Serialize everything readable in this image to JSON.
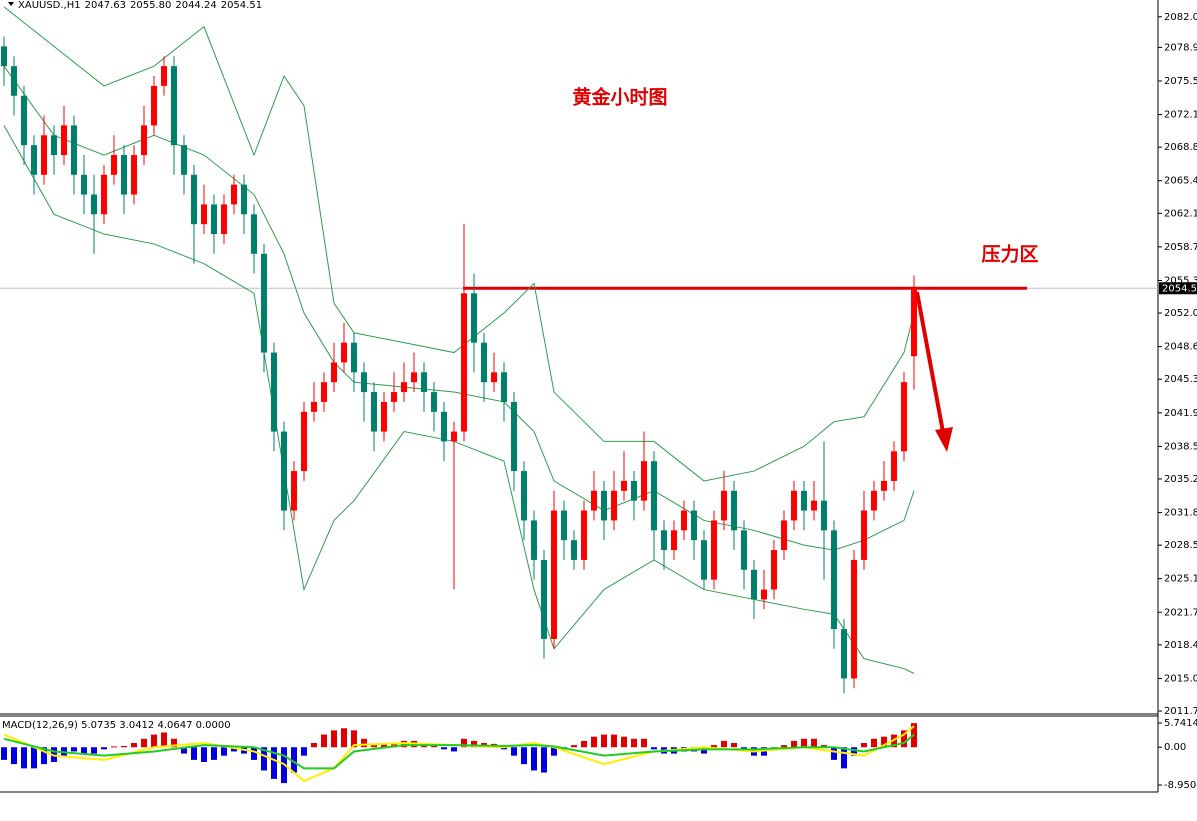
{
  "chart_data": {
    "type": "candlestick",
    "symbol": "XAUUSD.,H1",
    "last_bar_labels": [
      "2047.63",
      "2055.80",
      "2044.24",
      "2054.51"
    ],
    "annotation_title": "黄金小时图",
    "annotation_zone": "压力区",
    "resistance": 2054.51,
    "up_color": "#ff0000",
    "down_color": "#00806a",
    "band_color": "#2e9e4a",
    "open": [
      2079,
      2077,
      2074,
      2069,
      2066,
      2070,
      2068,
      2071,
      2066,
      2064,
      2062,
      2066,
      2068,
      2064,
      2068,
      2071,
      2075,
      2077,
      2069,
      2066,
      2061,
      2063,
      2060,
      2063,
      2065,
      2062,
      2058,
      2048,
      2040,
      2032,
      2036,
      2042,
      2043,
      2045,
      2047,
      2049,
      2046,
      2044,
      2040,
      2043,
      2044,
      2045,
      2046,
      2044,
      2042,
      2039,
      2040,
      2054,
      2049,
      2045,
      2046,
      2043,
      2036,
      2031,
      2027,
      2019,
      2032,
      2029,
      2027,
      2032,
      2034,
      2031,
      2034,
      2035,
      2033,
      2037,
      2030,
      2028,
      2030,
      2032,
      2029,
      2025,
      2031,
      2034,
      2030,
      2026,
      2023,
      2024,
      2028,
      2031,
      2034,
      2032,
      2033,
      2030,
      2020,
      2015,
      2027,
      2032,
      2034,
      2035,
      2038,
      2047.63
    ],
    "high": [
      2080,
      2078,
      2075,
      2070,
      2072,
      2071,
      2073,
      2072,
      2068,
      2066,
      2067,
      2070,
      2069,
      2069,
      2073,
      2076,
      2078,
      2078,
      2070,
      2067,
      2065,
      2064,
      2064,
      2066,
      2066,
      2063,
      2059,
      2049,
      2041,
      2037,
      2043,
      2045,
      2046,
      2049,
      2051,
      2050,
      2047,
      2045,
      2044,
      2046,
      2047,
      2048,
      2047,
      2045,
      2043,
      2041,
      2061,
      2056,
      2050,
      2048,
      2047,
      2044,
      2037,
      2032,
      2028,
      2034,
      2033,
      2030,
      2033,
      2036,
      2035,
      2036,
      2038,
      2036,
      2040,
      2038,
      2031,
      2031,
      2033,
      2033,
      2030,
      2032,
      2036,
      2035,
      2031,
      2027,
      2026,
      2029,
      2032,
      2035,
      2035,
      2035,
      2039,
      2031,
      2021,
      2028,
      2034,
      2035,
      2037,
      2039,
      2046,
      2055.8
    ],
    "low": [
      2075,
      2072,
      2067,
      2064,
      2065,
      2066,
      2067,
      2064,
      2062,
      2058,
      2061,
      2065,
      2062,
      2063,
      2067,
      2070,
      2074,
      2066,
      2064,
      2057,
      2060,
      2058,
      2059,
      2062,
      2060,
      2056,
      2046,
      2038,
      2030,
      2031,
      2035,
      2041,
      2042,
      2044,
      2046,
      2044,
      2041,
      2038,
      2039,
      2042,
      2043,
      2044,
      2042,
      2040,
      2037,
      2024,
      2039,
      2046,
      2043,
      2044,
      2041,
      2034,
      2029,
      2025,
      2017,
      2018,
      2027,
      2026,
      2026,
      2031,
      2029,
      2030,
      2033,
      2031,
      2032,
      2027,
      2026,
      2027,
      2029,
      2027,
      2024,
      2024,
      2030,
      2028,
      2024,
      2021,
      2022,
      2023,
      2027,
      2030,
      2030,
      2031,
      2025,
      2018,
      2013.5,
      2014,
      2026,
      2031,
      2033,
      2034,
      2037,
      2044.24
    ],
    "close": [
      2077,
      2074,
      2069,
      2066,
      2070,
      2068,
      2071,
      2066,
      2064,
      2062,
      2066,
      2068,
      2064,
      2068,
      2071,
      2075,
      2077,
      2069,
      2066,
      2061,
      2063,
      2060,
      2063,
      2065,
      2062,
      2058,
      2048,
      2040,
      2032,
      2036,
      2042,
      2043,
      2045,
      2047,
      2049,
      2046,
      2044,
      2040,
      2043,
      2044,
      2045,
      2046,
      2044,
      2042,
      2039,
      2040,
      2054,
      2049,
      2045,
      2046,
      2043,
      2036,
      2031,
      2027,
      2019,
      2032,
      2029,
      2027,
      2032,
      2034,
      2031,
      2034,
      2035,
      2033,
      2037,
      2030,
      2028,
      2030,
      2032,
      2029,
      2025,
      2031,
      2034,
      2030,
      2026,
      2023,
      2024,
      2028,
      2031,
      2034,
      2032,
      2033,
      2030,
      2020,
      2015,
      2027,
      2032,
      2034,
      2035,
      2038,
      2045,
      2054.51
    ],
    "band_x": [
      0,
      5,
      10,
      15,
      20,
      25,
      28,
      30,
      33,
      35,
      40,
      45,
      50,
      53,
      55,
      60,
      65,
      70,
      75,
      80,
      83,
      86,
      90,
      91
    ],
    "band_upper": [
      2083,
      2079,
      2075,
      2077,
      2081,
      2068,
      2076,
      2073,
      2053,
      2050,
      2049,
      2048,
      2052,
      2055,
      2044,
      2039,
      2039,
      2035,
      2036,
      2038.5,
      2041,
      2041.5,
      2048,
      2052
    ],
    "band_middle": [
      2077,
      2070,
      2068,
      2070,
      2068,
      2064,
      2058,
      2052,
      2047,
      2045,
      2044.5,
      2044,
      2043,
      2040,
      2035,
      2032,
      2034,
      2031,
      2030,
      2028.5,
      2028,
      2029,
      2031,
      2034
    ],
    "band_lower": [
      2071,
      2062,
      2060,
      2059,
      2057,
      2054,
      2036,
      2024,
      2031,
      2033,
      2040,
      2039,
      2037,
      2024,
      2018,
      2024,
      2027,
      2024,
      2023,
      2022,
      2021.5,
      2017,
      2016,
      2015.5
    ],
    "ylim": [
      2011.5,
      2083.7
    ],
    "yticks": [
      {
        "value": 2082,
        "label": "2082.00"
      },
      {
        "value": 2078.9,
        "label": "2078.90"
      },
      {
        "value": 2075.5,
        "label": "2075.50"
      },
      {
        "value": 2072.1,
        "label": "2072.10"
      },
      {
        "value": 2068.8,
        "label": "2068.80"
      },
      {
        "value": 2065.4,
        "label": "2065.40"
      },
      {
        "value": 2062.1,
        "label": "2062.10"
      },
      {
        "value": 2058.7,
        "label": "2058.70"
      },
      {
        "value": 2055.3,
        "label": "2055.30"
      },
      {
        "value": 2052,
        "label": "2052.00"
      },
      {
        "value": 2048.6,
        "label": "2048.60"
      },
      {
        "value": 2045.3,
        "label": "2045.30"
      },
      {
        "value": 2041.9,
        "label": "2041.90"
      },
      {
        "value": 2038.5,
        "label": "2038.50"
      },
      {
        "value": 2035.2,
        "label": "2035.20"
      },
      {
        "value": 2031.8,
        "label": "2031.80"
      },
      {
        "value": 2028.5,
        "label": "2028.50"
      },
      {
        "value": 2025.1,
        "label": "2025.10"
      },
      {
        "value": 2021.7,
        "label": "2021.70"
      },
      {
        "value": 2018.4,
        "label": "2018.40"
      },
      {
        "value": 2015,
        "label": "2015.00"
      },
      {
        "value": 2011.7,
        "label": "2011.70"
      }
    ],
    "macd_title": "MACD(12,26,9) 5.0735 3.0412 4.0647 0.0000",
    "macd_hist_up": "#e00000",
    "macd_hist_down": "#0000e0",
    "macd_hist": [
      -3,
      -4,
      -5,
      -5,
      -4,
      -3.5,
      -2,
      -1,
      -1.5,
      -1.5,
      -0.5,
      0.2,
      0.3,
      1,
      2,
      3,
      3.5,
      2,
      -1.5,
      -3,
      -3.5,
      -3,
      -2,
      -1,
      -1.5,
      -3,
      -5.5,
      -7.5,
      -8.5,
      -6,
      -2,
      1,
      3,
      4,
      4.5,
      4,
      2,
      0.5,
      0.8,
      1,
      1.5,
      1.5,
      1,
      0.5,
      -0.5,
      -1,
      2,
      1.5,
      1,
      0.8,
      -0.5,
      -2,
      -4,
      -5.5,
      -6,
      -2,
      -0.5,
      0.5,
      1.5,
      2.5,
      3,
      3,
      2.5,
      2,
      2,
      -0.5,
      -1.5,
      -1.5,
      -1,
      -1,
      -1.5,
      0.5,
      1.5,
      1,
      -1,
      -2,
      -2,
      -0.5,
      0.5,
      1.5,
      2,
      2,
      0.5,
      -3,
      -5,
      -2,
      1,
      2,
      2.5,
      3,
      4,
      5.7
    ],
    "macd_lines": [
      {
        "color": "#ffee00",
        "values": [
          3,
          -2,
          -3,
          0,
          1,
          -1,
          -4,
          -8,
          -5,
          0.5,
          1,
          0.5,
          0,
          1,
          0,
          -4,
          -1,
          0,
          -1,
          0,
          -1,
          -2,
          3,
          5
        ]
      },
      {
        "color": "#22cc22",
        "values": [
          2,
          -1,
          -2,
          -1,
          0.5,
          0,
          -2,
          -5,
          -5,
          -1,
          0.5,
          0.5,
          0.3,
          0.5,
          0.2,
          -2,
          -1,
          -0.5,
          -0.5,
          0,
          0,
          -1,
          1,
          3
        ]
      }
    ],
    "macd_ylim": [
      -8.9504,
      5.7414
    ],
    "macd_yticks": [
      {
        "value": 5.7414,
        "label": "5.7414"
      },
      {
        "value": 0,
        "label": "0.00"
      },
      {
        "value": -8.9504,
        "label": "-8.9504"
      }
    ]
  }
}
